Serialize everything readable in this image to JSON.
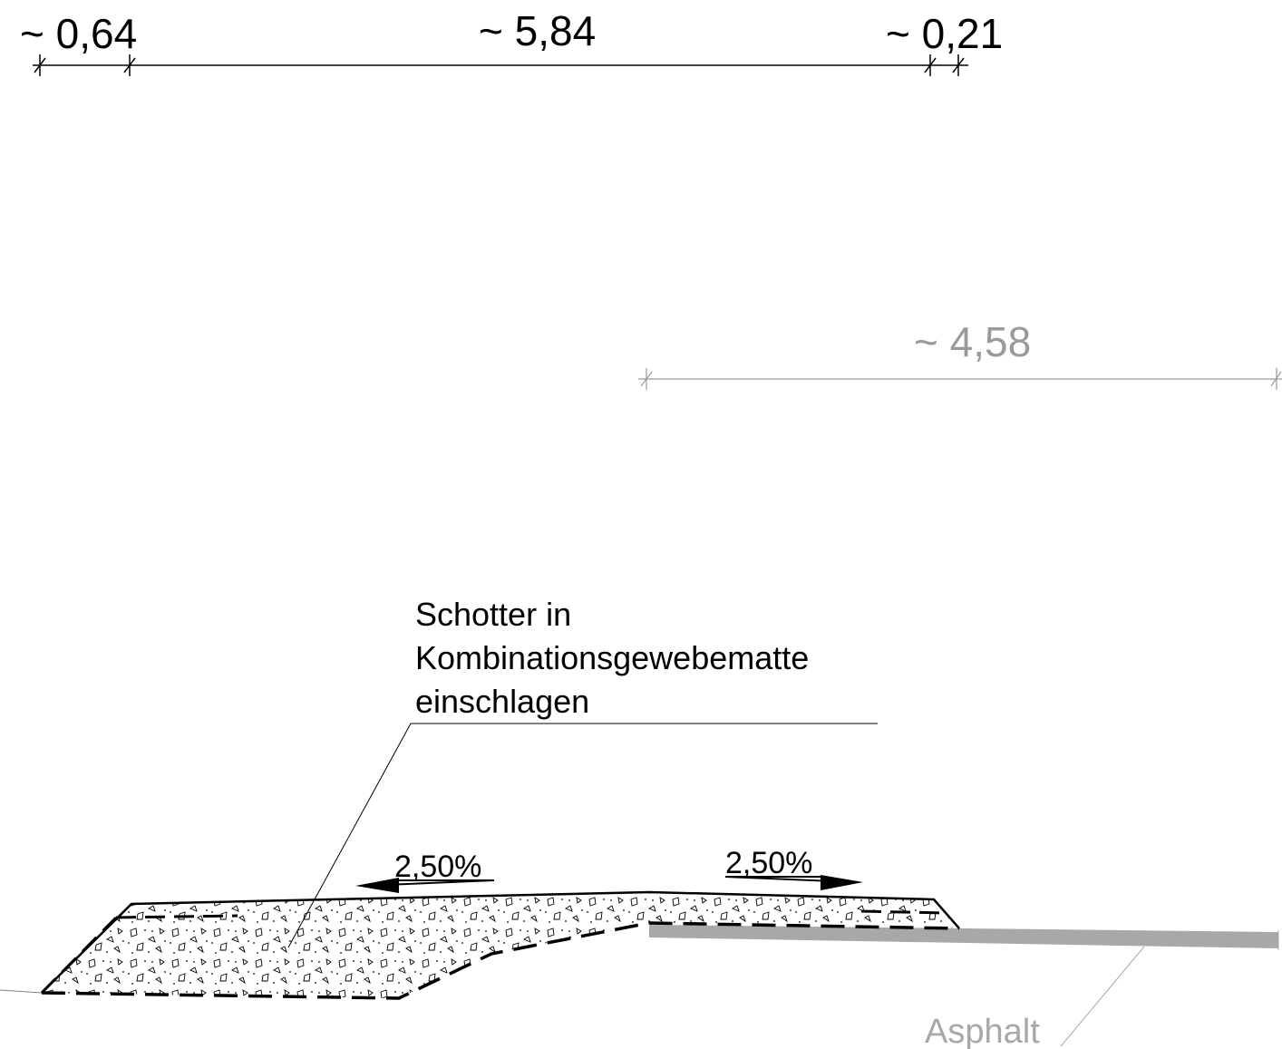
{
  "dimensions": {
    "top": [
      {
        "label": "~ 0,64"
      },
      {
        "label": "~ 5,84"
      },
      {
        "label": "~ 0,21"
      }
    ],
    "secondary": {
      "label": "~ 4,58"
    }
  },
  "callout": {
    "line1": "Schotter in",
    "line2": "Kombinationsgewebematte",
    "line3": "einschlagen"
  },
  "slopes": {
    "left": "2,50%",
    "right": "2,50%"
  },
  "layers": {
    "asphalt_label": "Asphalt"
  },
  "colors": {
    "linework": "#000000",
    "secondary_dimension": "#9a9a9a",
    "asphalt": "#a8a8a8"
  }
}
